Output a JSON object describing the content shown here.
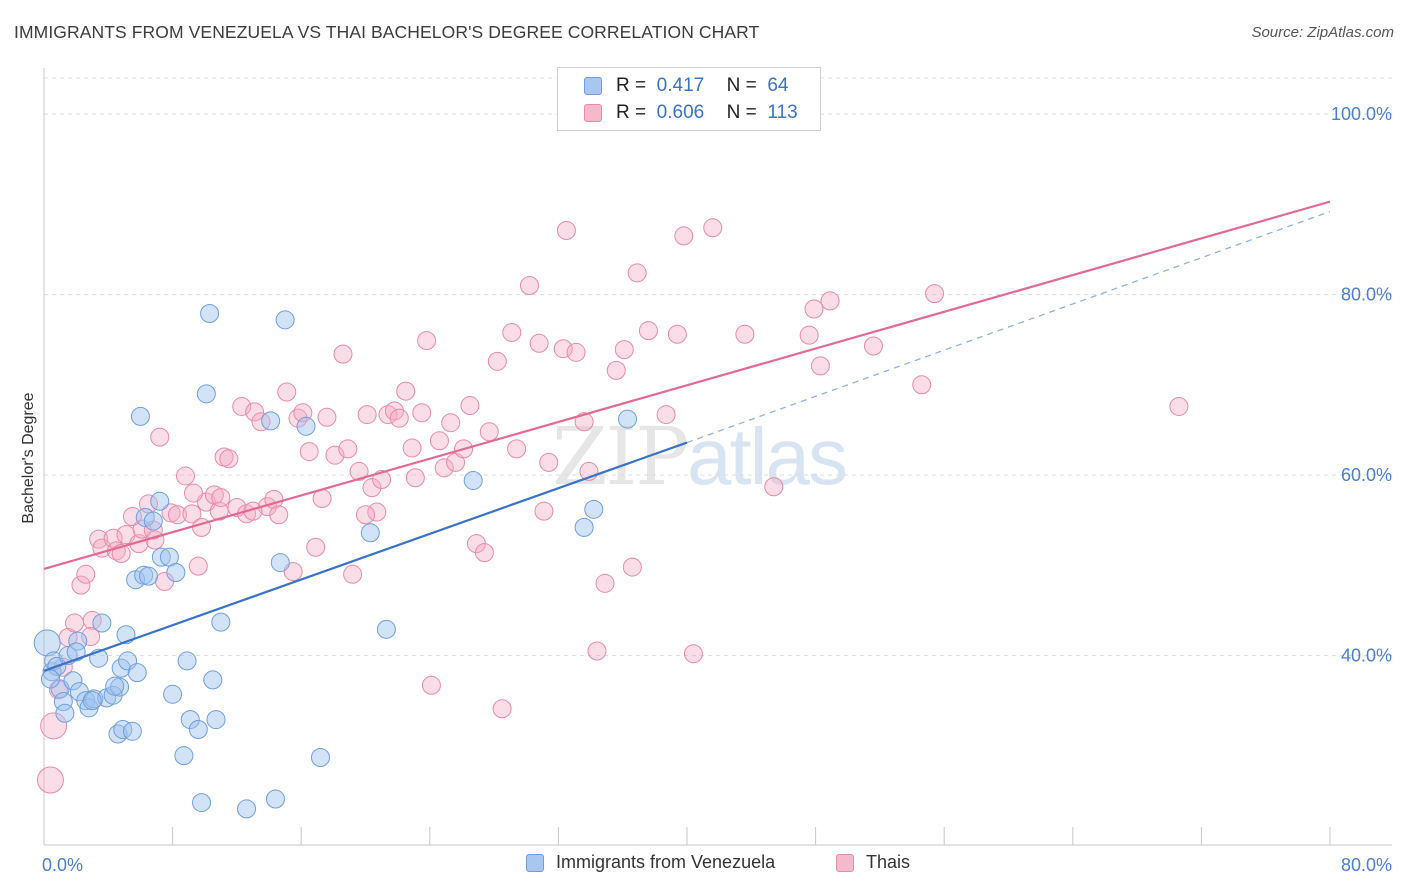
{
  "header": {
    "title": "IMMIGRANTS FROM VENEZUELA VS THAI BACHELOR'S DEGREE CORRELATION CHART",
    "source": "Source: ZipAtlas.com"
  },
  "watermark": {
    "zip": "ZIP",
    "atlas": "atlas"
  },
  "legend": {
    "r_label": "R =",
    "n_label": "N =",
    "rows": [
      {
        "r": "0.417",
        "n": "64",
        "color": "#a9c7ee",
        "stroke": "#6f9ee0"
      },
      {
        "r": "0.606",
        "n": "113",
        "color": "#f6b8cb",
        "stroke": "#ea8aa8"
      }
    ]
  },
  "bottom_legend": [
    {
      "label": "Immigrants from Venezuela",
      "color": "#a9c7ee",
      "stroke": "#6f9ee0"
    },
    {
      "label": "Thais",
      "color": "#f6b8cb",
      "stroke": "#ea8aa8"
    }
  ],
  "colors": {
    "blue": "#3a73c9",
    "pink": "#e26a93",
    "blue_fill": "rgba(157,192,238,0.45)",
    "pink_fill": "rgba(245,170,195,0.40)"
  },
  "chart_data": {
    "type": "scatter",
    "title": "IMMIGRANTS FROM VENEZUELA VS THAI BACHELOR'S DEGREE CORRELATION CHART",
    "xlabel": "",
    "ylabel": "Bachelor's Degree",
    "xlim": [
      0,
      80
    ],
    "ylim": [
      19,
      104
    ],
    "x_tick_labels": [
      {
        "value": 0,
        "label": "0.0%"
      },
      {
        "value": 80,
        "label": "80.0%"
      }
    ],
    "y_tick_labels": [
      {
        "value": 40,
        "label": "40.0%"
      },
      {
        "value": 60,
        "label": "60.0%"
      },
      {
        "value": 80,
        "label": "80.0%"
      },
      {
        "value": 100,
        "label": "100.0%"
      }
    ],
    "y_grid": [
      40,
      60,
      80,
      100
    ],
    "grid": true,
    "legend_position": "top-center",
    "series": [
      {
        "name": "Immigrants from Venezuela",
        "r": 0.417,
        "n": 64,
        "trend": {
          "x0": 0,
          "y0": 38.3,
          "x1": 40,
          "y1": 63.6,
          "dashed_to_x": 80,
          "dashed_to_y": 89.2
        },
        "points": [
          [
            0.2,
            41.4
          ],
          [
            0.5,
            38.2
          ],
          [
            0.6,
            39.4
          ],
          [
            0.8,
            38.8
          ],
          [
            1.0,
            36.3
          ],
          [
            1.2,
            34.9
          ],
          [
            1.3,
            33.6
          ],
          [
            1.5,
            40.0
          ],
          [
            1.8,
            37.2
          ],
          [
            2.1,
            41.6
          ],
          [
            2.2,
            36.0
          ],
          [
            2.6,
            35.0
          ],
          [
            2.8,
            34.2
          ],
          [
            3.1,
            35.2
          ],
          [
            3.4,
            39.7
          ],
          [
            3.6,
            43.6
          ],
          [
            3.9,
            35.3
          ],
          [
            4.3,
            35.6
          ],
          [
            4.6,
            31.3
          ],
          [
            4.7,
            36.5
          ],
          [
            4.8,
            38.6
          ],
          [
            4.9,
            31.8
          ],
          [
            5.1,
            42.3
          ],
          [
            5.2,
            39.4
          ],
          [
            5.5,
            31.6
          ],
          [
            5.7,
            48.4
          ],
          [
            5.8,
            38.1
          ],
          [
            6.0,
            66.5
          ],
          [
            6.2,
            48.9
          ],
          [
            6.3,
            55.3
          ],
          [
            6.5,
            48.8
          ],
          [
            6.8,
            54.9
          ],
          [
            7.2,
            57.1
          ],
          [
            7.3,
            50.9
          ],
          [
            7.8,
            50.9
          ],
          [
            8.0,
            35.7
          ],
          [
            8.2,
            49.2
          ],
          [
            8.7,
            28.9
          ],
          [
            8.9,
            39.4
          ],
          [
            9.1,
            32.9
          ],
          [
            9.6,
            31.8
          ],
          [
            9.8,
            23.7
          ],
          [
            10.1,
            69.0
          ],
          [
            10.3,
            77.9
          ],
          [
            10.5,
            37.3
          ],
          [
            10.7,
            32.9
          ],
          [
            11.0,
            43.7
          ],
          [
            12.6,
            23.0
          ],
          [
            14.1,
            66.0
          ],
          [
            14.4,
            24.1
          ],
          [
            14.7,
            50.3
          ],
          [
            15.0,
            77.2
          ],
          [
            16.3,
            65.4
          ],
          [
            17.2,
            28.7
          ],
          [
            20.3,
            53.6
          ],
          [
            21.3,
            42.9
          ],
          [
            26.7,
            59.4
          ],
          [
            33.6,
            54.2
          ],
          [
            34.2,
            56.2
          ],
          [
            36.3,
            66.2
          ],
          [
            2.0,
            40.4
          ],
          [
            0.4,
            37.4
          ],
          [
            3.0,
            35.0
          ],
          [
            4.4,
            36.6
          ]
        ]
      },
      {
        "name": "Thais",
        "r": 0.606,
        "n": 113,
        "trend": {
          "x0": 0,
          "y0": 49.6,
          "x1": 80,
          "y1": 90.3
        },
        "points": [
          [
            0.4,
            26.2
          ],
          [
            0.6,
            32.2
          ],
          [
            0.9,
            36.2
          ],
          [
            1.2,
            38.7
          ],
          [
            1.5,
            42.0
          ],
          [
            1.9,
            43.6
          ],
          [
            2.3,
            47.8
          ],
          [
            2.6,
            49.0
          ],
          [
            3.0,
            43.9
          ],
          [
            3.4,
            52.9
          ],
          [
            3.6,
            51.9
          ],
          [
            4.3,
            53.0
          ],
          [
            4.5,
            51.6
          ],
          [
            4.8,
            51.3
          ],
          [
            5.1,
            53.4
          ],
          [
            5.5,
            55.4
          ],
          [
            5.9,
            52.4
          ],
          [
            6.1,
            54.0
          ],
          [
            6.5,
            56.8
          ],
          [
            6.9,
            52.8
          ],
          [
            7.2,
            64.2
          ],
          [
            7.5,
            48.2
          ],
          [
            7.9,
            55.8
          ],
          [
            8.3,
            55.6
          ],
          [
            8.8,
            59.9
          ],
          [
            9.2,
            55.7
          ],
          [
            9.6,
            49.9
          ],
          [
            9.8,
            54.2
          ],
          [
            10.1,
            57.0
          ],
          [
            10.6,
            57.8
          ],
          [
            10.9,
            56.0
          ],
          [
            11.2,
            62.0
          ],
          [
            11.5,
            61.8
          ],
          [
            12.0,
            56.4
          ],
          [
            12.3,
            67.6
          ],
          [
            12.6,
            55.7
          ],
          [
            13.1,
            67.0
          ],
          [
            13.5,
            65.9
          ],
          [
            13.9,
            56.5
          ],
          [
            14.3,
            57.3
          ],
          [
            14.6,
            55.6
          ],
          [
            15.1,
            69.2
          ],
          [
            15.5,
            49.3
          ],
          [
            15.8,
            66.3
          ],
          [
            16.1,
            66.9
          ],
          [
            16.5,
            62.6
          ],
          [
            16.9,
            52.0
          ],
          [
            17.3,
            57.4
          ],
          [
            17.6,
            66.4
          ],
          [
            18.1,
            62.2
          ],
          [
            18.6,
            73.4
          ],
          [
            18.9,
            62.9
          ],
          [
            19.2,
            49.0
          ],
          [
            19.6,
            60.4
          ],
          [
            20.1,
            66.7
          ],
          [
            20.4,
            58.6
          ],
          [
            20.7,
            55.9
          ],
          [
            21.0,
            59.5
          ],
          [
            21.4,
            66.7
          ],
          [
            21.8,
            67.1
          ],
          [
            22.1,
            66.3
          ],
          [
            22.5,
            69.3
          ],
          [
            22.9,
            63.0
          ],
          [
            23.1,
            59.7
          ],
          [
            23.5,
            66.9
          ],
          [
            23.8,
            74.9
          ],
          [
            24.1,
            36.7
          ],
          [
            24.6,
            63.8
          ],
          [
            24.9,
            60.8
          ],
          [
            25.3,
            65.8
          ],
          [
            25.6,
            61.4
          ],
          [
            26.1,
            62.9
          ],
          [
            26.5,
            67.7
          ],
          [
            26.9,
            52.4
          ],
          [
            27.4,
            51.4
          ],
          [
            27.7,
            64.8
          ],
          [
            28.2,
            72.6
          ],
          [
            28.5,
            34.1
          ],
          [
            29.1,
            75.8
          ],
          [
            29.4,
            62.9
          ],
          [
            30.2,
            81.0
          ],
          [
            30.8,
            74.6
          ],
          [
            31.4,
            61.4
          ],
          [
            32.3,
            74.0
          ],
          [
            32.5,
            87.1
          ],
          [
            33.1,
            73.6
          ],
          [
            33.6,
            65.9
          ],
          [
            33.9,
            60.4
          ],
          [
            34.4,
            40.5
          ],
          [
            34.9,
            48.0
          ],
          [
            35.6,
            71.6
          ],
          [
            36.1,
            73.9
          ],
          [
            36.6,
            49.8
          ],
          [
            36.9,
            82.4
          ],
          [
            37.6,
            76.0
          ],
          [
            38.7,
            66.7
          ],
          [
            39.4,
            75.6
          ],
          [
            39.8,
            86.5
          ],
          [
            40.4,
            40.2
          ],
          [
            41.6,
            87.4
          ],
          [
            43.6,
            75.6
          ],
          [
            45.4,
            58.7
          ],
          [
            47.6,
            75.5
          ],
          [
            47.9,
            78.4
          ],
          [
            48.3,
            72.1
          ],
          [
            48.9,
            79.3
          ],
          [
            51.6,
            74.3
          ],
          [
            54.6,
            70.0
          ],
          [
            55.4,
            80.1
          ],
          [
            70.6,
            67.6
          ],
          [
            2.9,
            42.1
          ],
          [
            6.8,
            53.9
          ],
          [
            9.3,
            58.0
          ],
          [
            13.0,
            56.0
          ],
          [
            20.0,
            55.6
          ],
          [
            31.1,
            56.0
          ],
          [
            11.0,
            57.5
          ]
        ]
      }
    ]
  }
}
